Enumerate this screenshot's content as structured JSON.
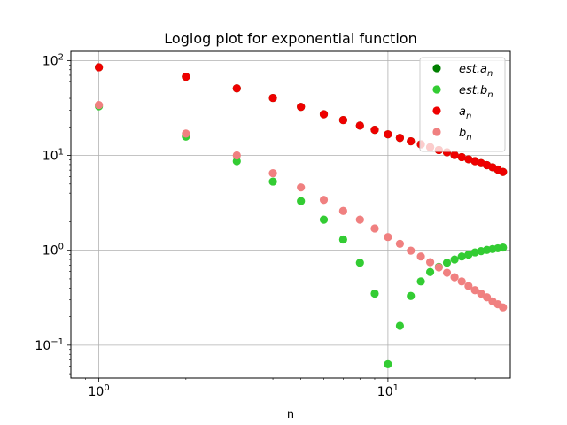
{
  "chart_data": {
    "type": "scatter",
    "title": "Loglog plot for exponential function",
    "xlabel": "n",
    "ylabel": "",
    "x_scale": "log",
    "y_scale": "log",
    "xlim": [
      0.8,
      26.5
    ],
    "ylim": [
      0.045,
      125
    ],
    "grid": true,
    "legend_position": "top-right",
    "x_ticks": [
      {
        "value": 1,
        "base": "10",
        "exp": "0"
      },
      {
        "value": 10,
        "base": "10",
        "exp": "1"
      }
    ],
    "y_ticks": [
      {
        "value": 0.1,
        "base": "10",
        "exp": "−1"
      },
      {
        "value": 1,
        "base": "10",
        "exp": "0"
      },
      {
        "value": 10,
        "base": "10",
        "exp": "1"
      },
      {
        "value": 100,
        "base": "10",
        "exp": "2"
      }
    ],
    "series": [
      {
        "name": "est.a_n",
        "legend_main": "est.a",
        "legend_sub": "n",
        "color": "#007f00",
        "x": [
          1,
          2,
          3,
          4,
          5,
          6,
          7,
          8,
          9,
          10,
          11,
          12,
          13,
          14,
          15,
          16,
          17,
          18,
          19,
          20,
          21,
          22,
          23,
          24,
          25
        ],
        "y": [
          85.0,
          67.5,
          51.0,
          40.4,
          32.5,
          27.2,
          23.6,
          20.6,
          18.6,
          16.7,
          15.3,
          14.1,
          13.1,
          12.2,
          11.4,
          10.8,
          10.1,
          9.6,
          9.1,
          8.7,
          8.3,
          7.9,
          7.5,
          7.1,
          6.7
        ]
      },
      {
        "name": "est.b_n",
        "legend_main": "est.b",
        "legend_sub": "n",
        "color": "#33cc33",
        "x": [
          1,
          2,
          3,
          4,
          5,
          6,
          7,
          8,
          9,
          10,
          11,
          12,
          13,
          14,
          15,
          16,
          17,
          18,
          19,
          20,
          21,
          22,
          23,
          24,
          25
        ],
        "y": [
          33.0,
          15.8,
          8.7,
          5.3,
          3.3,
          2.1,
          1.3,
          0.74,
          0.35,
          0.063,
          0.16,
          0.33,
          0.47,
          0.59,
          0.67,
          0.74,
          0.8,
          0.86,
          0.9,
          0.95,
          0.98,
          1.01,
          1.03,
          1.05,
          1.07
        ]
      },
      {
        "name": "a_n",
        "legend_main": "a",
        "legend_sub": "n",
        "color": "#ee0000",
        "x": [
          1,
          2,
          3,
          4,
          5,
          6,
          7,
          8,
          9,
          10,
          11,
          12,
          13,
          14,
          15,
          16,
          17,
          18,
          19,
          20,
          21,
          22,
          23,
          24,
          25
        ],
        "y": [
          85.0,
          67.5,
          51.0,
          40.4,
          32.5,
          27.2,
          23.6,
          20.6,
          18.6,
          16.7,
          15.3,
          14.1,
          13.1,
          12.2,
          11.4,
          10.8,
          10.1,
          9.6,
          9.1,
          8.7,
          8.3,
          7.9,
          7.5,
          7.1,
          6.7
        ]
      },
      {
        "name": "b_n",
        "legend_main": "b",
        "legend_sub": "n",
        "color": "#f08080",
        "x": [
          1,
          2,
          3,
          4,
          5,
          6,
          7,
          8,
          9,
          10,
          11,
          12,
          13,
          14,
          15,
          16,
          17,
          18,
          19,
          20,
          21,
          22,
          23,
          24,
          25
        ],
        "y": [
          34.0,
          17.0,
          10.0,
          6.5,
          4.6,
          3.4,
          2.6,
          2.1,
          1.7,
          1.38,
          1.17,
          0.99,
          0.86,
          0.75,
          0.66,
          0.58,
          0.52,
          0.47,
          0.42,
          0.38,
          0.35,
          0.32,
          0.29,
          0.27,
          0.25
        ]
      }
    ]
  }
}
